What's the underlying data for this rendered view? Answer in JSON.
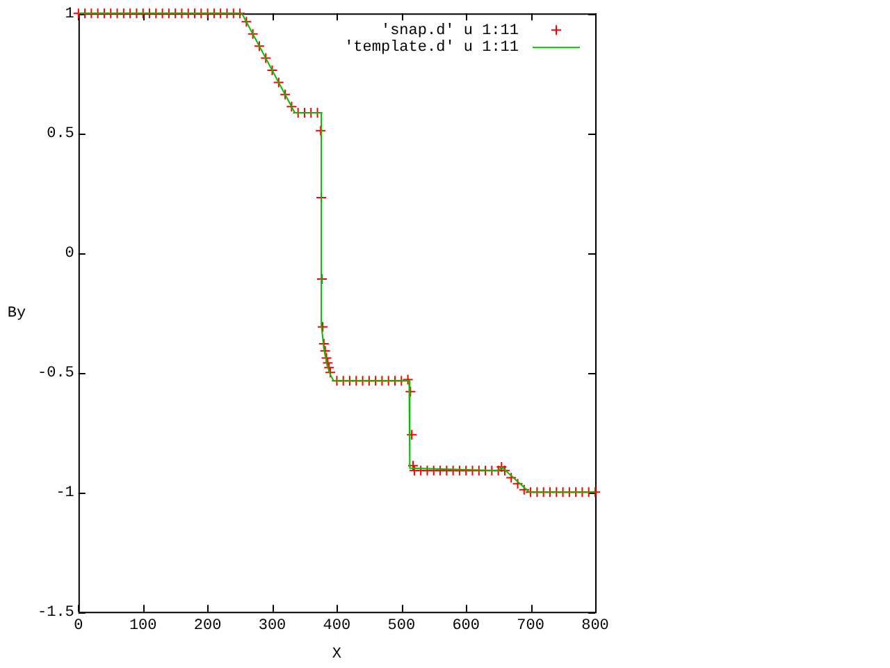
{
  "chart_data": {
    "type": "scatter",
    "xlabel": "X",
    "ylabel": "By",
    "xlim": [
      0,
      800
    ],
    "ylim": [
      -1.5,
      1
    ],
    "xticks": [
      0,
      100,
      200,
      300,
      400,
      500,
      600,
      700,
      800
    ],
    "yticks": [
      -1.5,
      -1,
      -0.5,
      0,
      0.5,
      1
    ],
    "grid": false,
    "legend": "top right",
    "series": [
      {
        "name": "'snap.d' u 1:11",
        "marker": "cross",
        "color": "#ff0000",
        "x": [
          0,
          10,
          20,
          30,
          40,
          50,
          60,
          70,
          80,
          90,
          100,
          110,
          120,
          130,
          140,
          150,
          160,
          170,
          180,
          190,
          200,
          210,
          220,
          230,
          240,
          250,
          260,
          270,
          280,
          290,
          300,
          310,
          320,
          330,
          340,
          350,
          360,
          370,
          375,
          376,
          377,
          378,
          380,
          382,
          384,
          386,
          388,
          390,
          400,
          410,
          420,
          430,
          440,
          450,
          460,
          470,
          480,
          490,
          500,
          510,
          514,
          516,
          518,
          520,
          530,
          540,
          550,
          560,
          570,
          580,
          590,
          600,
          610,
          620,
          630,
          640,
          650,
          655,
          660,
          670,
          680,
          690,
          700,
          710,
          720,
          730,
          740,
          750,
          760,
          770,
          780,
          790,
          800
        ],
        "values": [
          1,
          1,
          1,
          1,
          1,
          1,
          1,
          1,
          1,
          1,
          1,
          1,
          1,
          1,
          1,
          1,
          1,
          1,
          1,
          1,
          1,
          1,
          1,
          1,
          1,
          1,
          0.965,
          0.914,
          0.863,
          0.813,
          0.762,
          0.711,
          0.661,
          0.61,
          0.585,
          0.585,
          0.585,
          0.585,
          0.51,
          0.23,
          -0.11,
          -0.31,
          -0.38,
          -0.41,
          -0.44,
          -0.46,
          -0.48,
          -0.5,
          -0.535,
          -0.535,
          -0.535,
          -0.535,
          -0.535,
          -0.535,
          -0.535,
          -0.535,
          -0.535,
          -0.535,
          -0.535,
          -0.53,
          -0.58,
          -0.76,
          -0.89,
          -0.91,
          -0.91,
          -0.91,
          -0.91,
          -0.91,
          -0.91,
          -0.91,
          -0.91,
          -0.91,
          -0.91,
          -0.91,
          -0.91,
          -0.91,
          -0.91,
          -0.895,
          -0.91,
          -0.94,
          -0.965,
          -0.99,
          -1,
          -1,
          -1,
          -1,
          -1,
          -1,
          -1,
          -1,
          -1,
          -1,
          -1
        ]
      },
      {
        "name": "'template.d' u 1:11",
        "type": "line",
        "marker": "none",
        "line_style": "solid",
        "color": "#00c000",
        "x": [
          0,
          253,
          335,
          376,
          376,
          380,
          385,
          390,
          395,
          512,
          513,
          650,
          655,
          698,
          800
        ],
        "values": [
          1,
          1,
          0.585,
          0.585,
          -0.3,
          -0.4,
          -0.47,
          -0.51,
          -0.535,
          -0.535,
          -0.9,
          -0.91,
          -0.895,
          -1,
          -1
        ]
      }
    ]
  }
}
